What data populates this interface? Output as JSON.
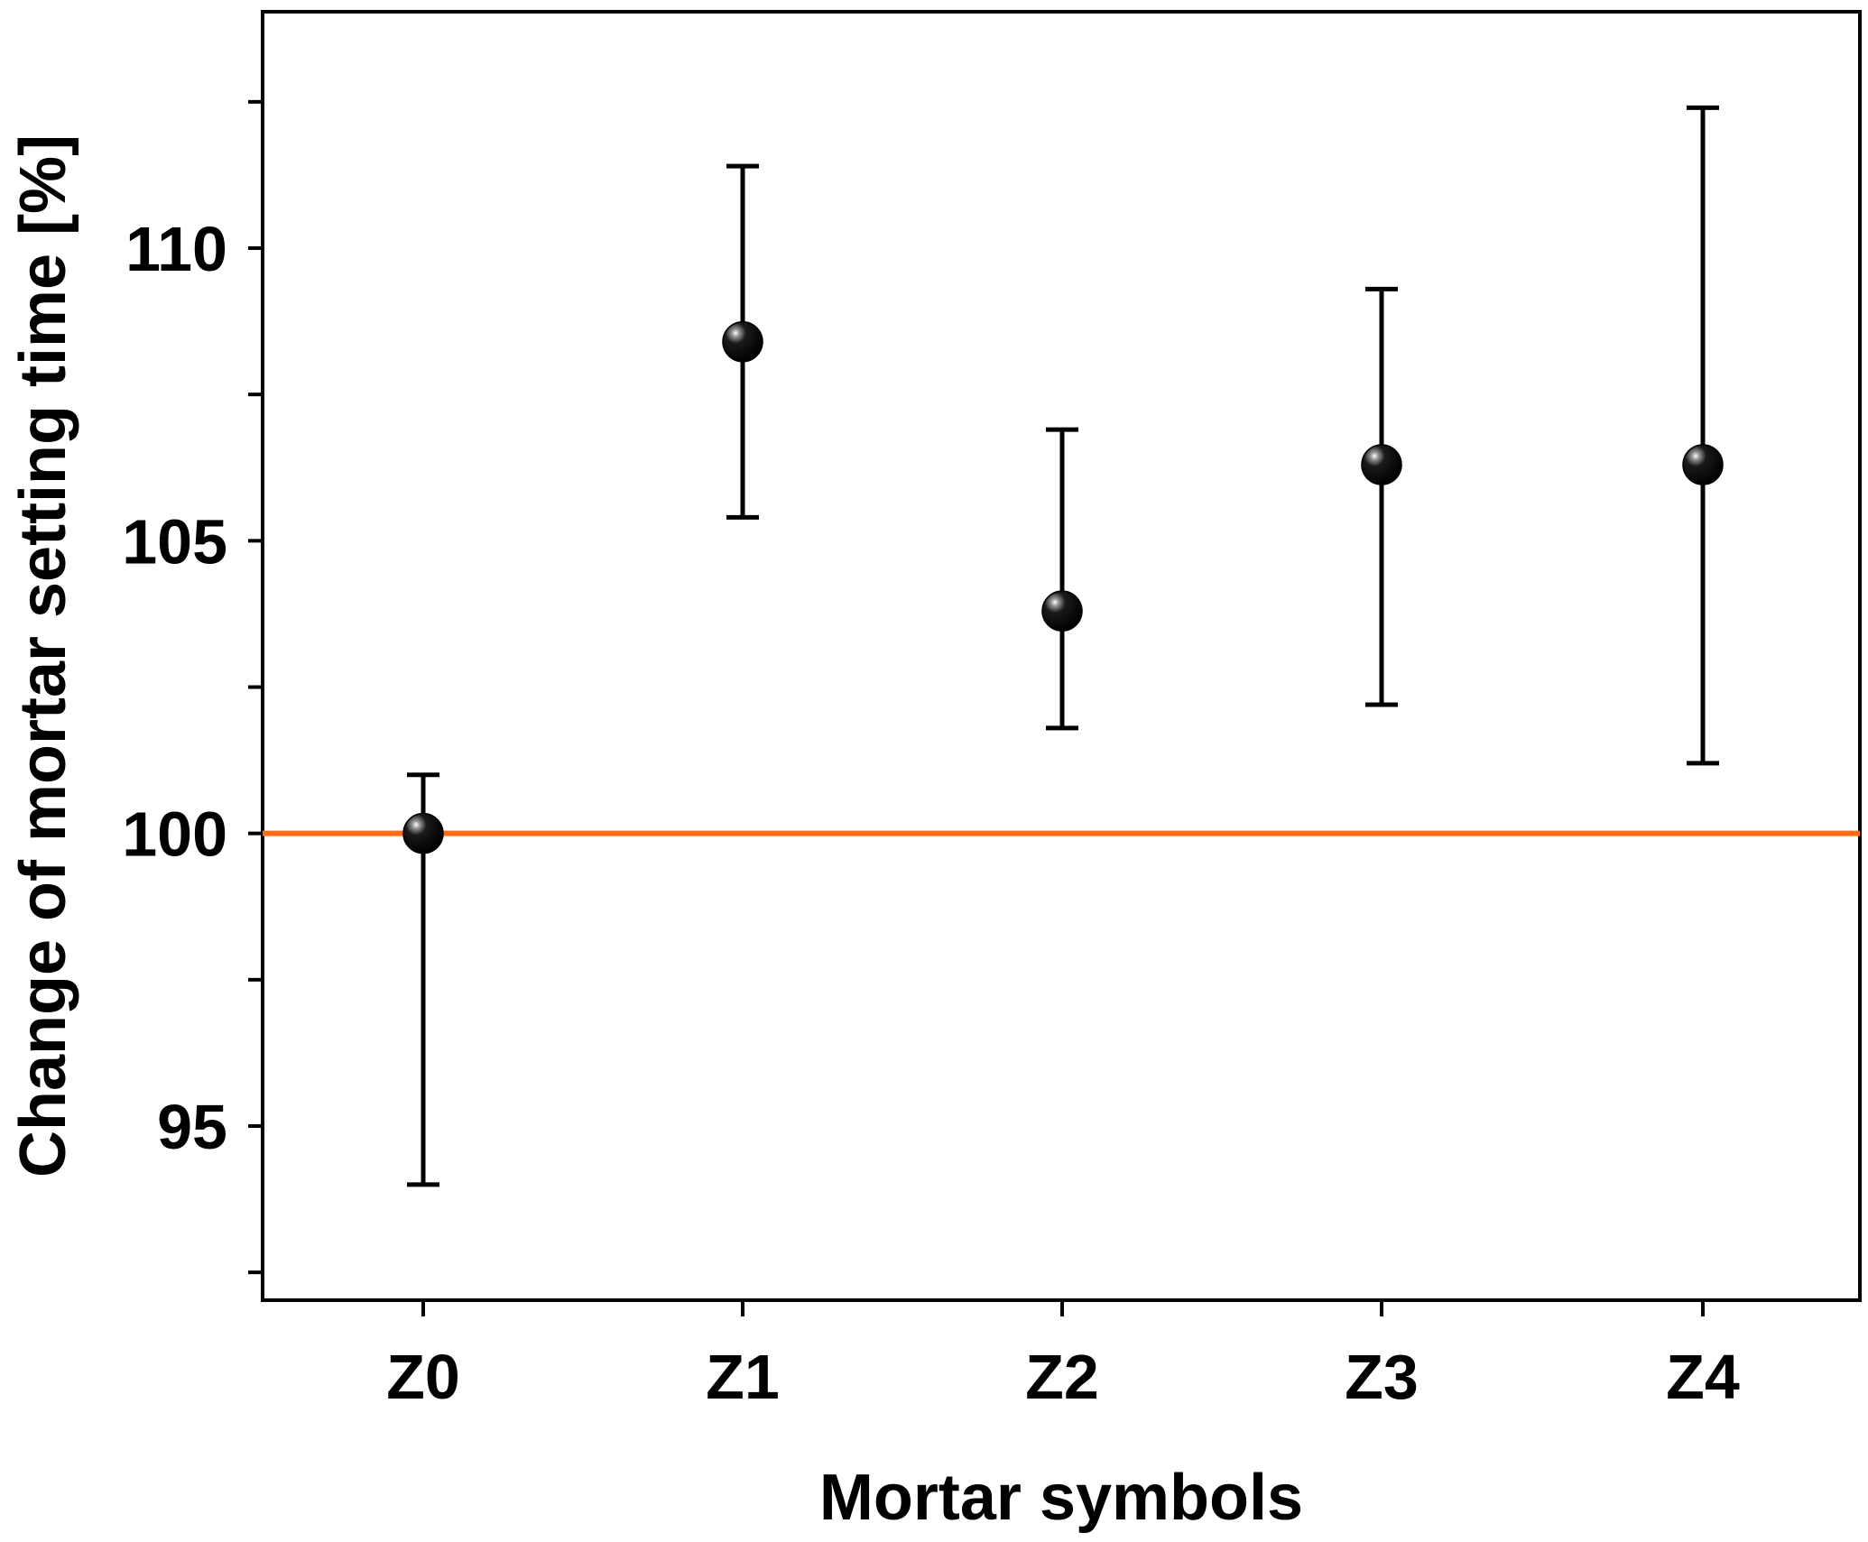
{
  "chart_data": {
    "type": "scatter",
    "title": "",
    "xlabel": "Mortar symbols",
    "ylabel": "Change of mortar setting time [%]",
    "categories": [
      "Z0",
      "Z1",
      "Z2",
      "Z3",
      "Z4"
    ],
    "series": [
      {
        "values": [
          100.0,
          108.4,
          103.8,
          106.3,
          106.3
        ],
        "error_low": [
          94.0,
          105.4,
          101.8,
          102.2,
          101.2
        ],
        "error_high": [
          101.0,
          111.4,
          106.9,
          109.3,
          112.4
        ]
      }
    ],
    "reference_line": {
      "y": 100,
      "color": "#ff6a13"
    },
    "ylim": [
      92.5,
      114.5
    ],
    "yticks": [
      95,
      100,
      105,
      110
    ],
    "ytick_labels": [
      "95",
      "100",
      "105",
      "110"
    ],
    "grid": false,
    "legend": "none",
    "colors": {
      "axis": "#000000",
      "marker": "#000000",
      "error_bar": "#000000",
      "reference": "#ff6a13"
    }
  }
}
